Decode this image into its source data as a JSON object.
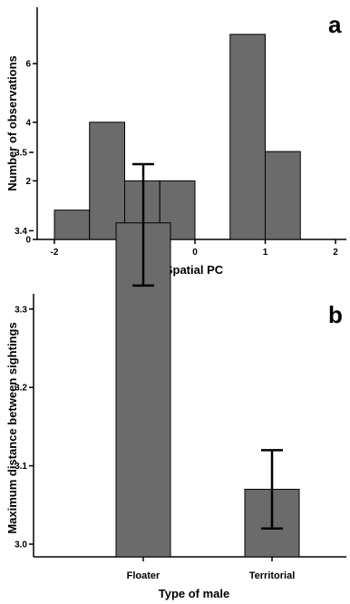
{
  "chart_data": [
    {
      "type": "bar",
      "panel_label": "a",
      "xlabel": "Spatial PC",
      "ylabel": "Number of observations",
      "xlim": [
        -2,
        2
      ],
      "ylim": [
        0,
        7.5
      ],
      "x_ticks": [
        "-2",
        "-1",
        "0",
        "1",
        "2"
      ],
      "y_ticks": [
        "0",
        "2",
        "4",
        "6"
      ],
      "bins": [
        {
          "x0": -2.0,
          "x1": -1.5,
          "count": 1
        },
        {
          "x0": -1.5,
          "x1": -1.0,
          "count": 4
        },
        {
          "x0": -1.0,
          "x1": -0.5,
          "count": 2
        },
        {
          "x0": -0.5,
          "x1": 0.0,
          "count": 2
        },
        {
          "x0": 0.5,
          "x1": 1.0,
          "count": 7
        },
        {
          "x0": 1.0,
          "x1": 1.5,
          "count": 3
        }
      ]
    },
    {
      "type": "bar",
      "panel_label": "b",
      "xlabel": "Type of male",
      "ylabel": "Maximum distance between sightings",
      "ylim": [
        2.97,
        3.52
      ],
      "y_ticks": [
        "3.0",
        "3.1",
        "3.2",
        "3.3",
        "3.4",
        "3.5"
      ],
      "categories": [
        "Floater",
        "Territorial"
      ],
      "values": [
        3.41,
        3.07
      ],
      "error_low": [
        3.33,
        3.02
      ],
      "error_high": [
        3.485,
        3.12
      ]
    }
  ]
}
